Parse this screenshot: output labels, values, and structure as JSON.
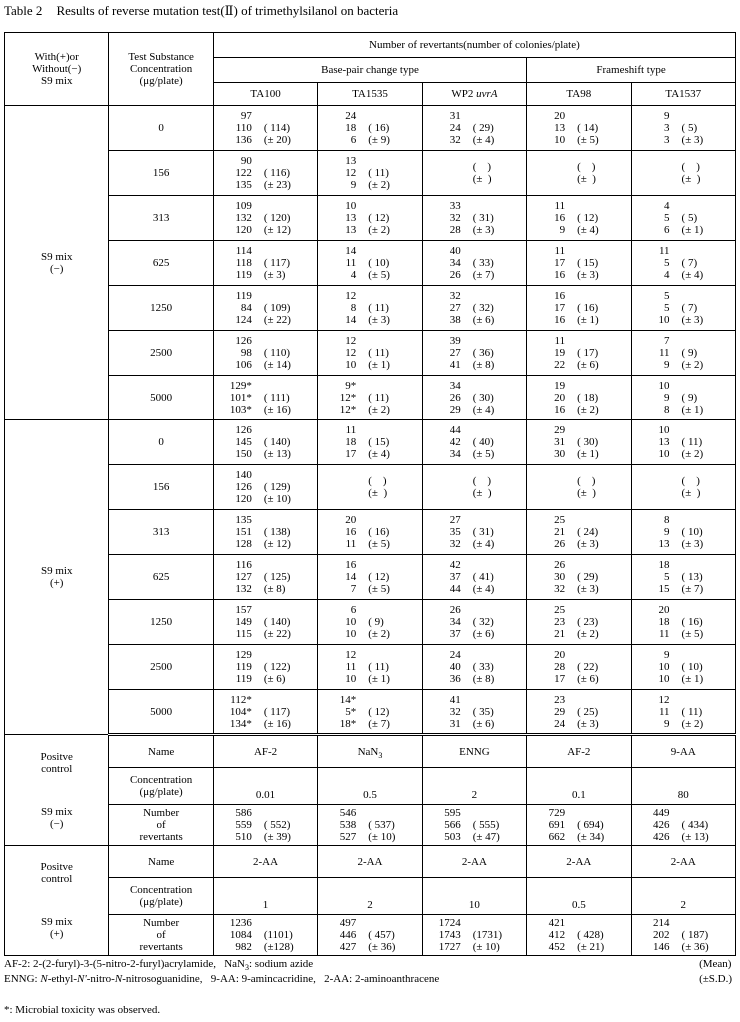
{
  "title": {
    "label": "Table 2",
    "text": "Results of reverse mutation test(Ⅱ) of trimethylsilanol on bacteria"
  },
  "header": {
    "col0": [
      "With(+)or",
      "Without(−)",
      "S9 mix"
    ],
    "col1": [
      "Test Substance",
      "Concentration",
      "(μg/plate)"
    ],
    "group": "Number of revertants(number of colonies/plate)",
    "types": [
      "Base-pair change type",
      "Frameshift type"
    ],
    "strains": [
      [
        {
          "t": "TA100"
        }
      ],
      [
        {
          "t": "TA1535"
        }
      ],
      [
        {
          "t": "WP2 "
        },
        {
          "t": "uvrA",
          "i": true
        }
      ],
      [
        {
          "t": "TA98"
        }
      ],
      [
        {
          "t": "TA1537"
        }
      ]
    ]
  },
  "blocks": [
    {
      "label": [
        "S9 mix",
        "(−)"
      ],
      "rows": [
        {
          "conc": "0",
          "cells": [
            {
              "counts": [
                "97",
                "110",
                "136"
              ],
              "mean": "( 114)",
              "sd": "(± 20)"
            },
            {
              "counts": [
                "24",
                "18",
                "6"
              ],
              "mean": "( 16)",
              "sd": "(± 9)"
            },
            {
              "counts": [
                "31",
                "24",
                "32"
              ],
              "mean": "( 29)",
              "sd": "(± 4)"
            },
            {
              "counts": [
                "20",
                "13",
                "10"
              ],
              "mean": "( 14)",
              "sd": "(± 5)"
            },
            {
              "counts": [
                "9",
                "3",
                "3"
              ],
              "mean": "( 5)",
              "sd": "(± 3)"
            }
          ]
        },
        {
          "conc": "156",
          "cells": [
            {
              "counts": [
                "90",
                "122",
                "135"
              ],
              "mean": "( 116)",
              "sd": "(± 23)"
            },
            {
              "counts": [
                "13",
                "12",
                "9"
              ],
              "mean": "( 11)",
              "sd": "(± 2)"
            },
            {
              "counts": [],
              "mean": "(    )",
              "sd": "(±  )"
            },
            {
              "counts": [],
              "mean": "(    )",
              "sd": "(±  )"
            },
            {
              "counts": [],
              "mean": "(    )",
              "sd": "(±  )"
            }
          ]
        },
        {
          "conc": "313",
          "cells": [
            {
              "counts": [
                "109",
                "132",
                "120"
              ],
              "mean": "( 120)",
              "sd": "(± 12)"
            },
            {
              "counts": [
                "10",
                "13",
                "13"
              ],
              "mean": "( 12)",
              "sd": "(± 2)"
            },
            {
              "counts": [
                "33",
                "32",
                "28"
              ],
              "mean": "( 31)",
              "sd": "(± 3)"
            },
            {
              "counts": [
                "11",
                "16",
                "9"
              ],
              "mean": "( 12)",
              "sd": "(± 4)"
            },
            {
              "counts": [
                "4",
                "5",
                "6"
              ],
              "mean": "( 5)",
              "sd": "(± 1)"
            }
          ]
        },
        {
          "conc": "625",
          "cells": [
            {
              "counts": [
                "114",
                "118",
                "119"
              ],
              "mean": "( 117)",
              "sd": "(± 3)"
            },
            {
              "counts": [
                "14",
                "11",
                "4"
              ],
              "mean": "( 10)",
              "sd": "(± 5)"
            },
            {
              "counts": [
                "40",
                "34",
                "26"
              ],
              "mean": "( 33)",
              "sd": "(± 7)"
            },
            {
              "counts": [
                "11",
                "17",
                "16"
              ],
              "mean": "( 15)",
              "sd": "(± 3)"
            },
            {
              "counts": [
                "11",
                "5",
                "4"
              ],
              "mean": "( 7)",
              "sd": "(± 4)"
            }
          ]
        },
        {
          "conc": "1250",
          "cells": [
            {
              "counts": [
                "119",
                "84",
                "124"
              ],
              "mean": "( 109)",
              "sd": "(± 22)"
            },
            {
              "counts": [
                "12",
                "8",
                "14"
              ],
              "mean": "( 11)",
              "sd": "(± 3)"
            },
            {
              "counts": [
                "32",
                "27",
                "38"
              ],
              "mean": "( 32)",
              "sd": "(± 6)"
            },
            {
              "counts": [
                "16",
                "17",
                "16"
              ],
              "mean": "( 16)",
              "sd": "(± 1)"
            },
            {
              "counts": [
                "5",
                "5",
                "10"
              ],
              "mean": "( 7)",
              "sd": "(± 3)"
            }
          ]
        },
        {
          "conc": "2500",
          "cells": [
            {
              "counts": [
                "126",
                "98",
                "106"
              ],
              "mean": "( 110)",
              "sd": "(± 14)"
            },
            {
              "counts": [
                "12",
                "12",
                "10"
              ],
              "mean": "( 11)",
              "sd": "(± 1)"
            },
            {
              "counts": [
                "39",
                "27",
                "41"
              ],
              "mean": "( 36)",
              "sd": "(± 8)"
            },
            {
              "counts": [
                "11",
                "19",
                "22"
              ],
              "mean": "( 17)",
              "sd": "(± 6)"
            },
            {
              "counts": [
                "7",
                "11",
                "9"
              ],
              "mean": "( 9)",
              "sd": "(± 2)"
            }
          ]
        },
        {
          "conc": "5000",
          "cells": [
            {
              "counts": [
                "129*",
                "101*",
                "103*"
              ],
              "mean": "( 111)",
              "sd": "(± 16)"
            },
            {
              "counts": [
                "9*",
                "12*",
                "12*"
              ],
              "mean": "( 11)",
              "sd": "(± 2)"
            },
            {
              "counts": [
                "34",
                "26",
                "29"
              ],
              "mean": "( 30)",
              "sd": "(± 4)"
            },
            {
              "counts": [
                "19",
                "20",
                "16"
              ],
              "mean": "( 18)",
              "sd": "(± 2)"
            },
            {
              "counts": [
                "10",
                "9",
                "8"
              ],
              "mean": "( 9)",
              "sd": "(± 1)"
            }
          ]
        }
      ]
    },
    {
      "label": [
        "S9 mix",
        "(+)"
      ],
      "rows": [
        {
          "conc": "0",
          "cells": [
            {
              "counts": [
                "126",
                "145",
                "150"
              ],
              "mean": "( 140)",
              "sd": "(± 13)"
            },
            {
              "counts": [
                "11",
                "18",
                "17"
              ],
              "mean": "( 15)",
              "sd": "(± 4)"
            },
            {
              "counts": [
                "44",
                "42",
                "34"
              ],
              "mean": "( 40)",
              "sd": "(± 5)"
            },
            {
              "counts": [
                "29",
                "31",
                "30"
              ],
              "mean": "( 30)",
              "sd": "(± 1)"
            },
            {
              "counts": [
                "10",
                "13",
                "10"
              ],
              "mean": "( 11)",
              "sd": "(± 2)"
            }
          ]
        },
        {
          "conc": "156",
          "cells": [
            {
              "counts": [
                "140",
                "126",
                "120"
              ],
              "mean": "( 129)",
              "sd": "(± 10)"
            },
            {
              "counts": [],
              "mean": "(    )",
              "sd": "(±  )"
            },
            {
              "counts": [],
              "mean": "(    )",
              "sd": "(±  )"
            },
            {
              "counts": [],
              "mean": "(    )",
              "sd": "(±  )"
            },
            {
              "counts": [],
              "mean": "(    )",
              "sd": "(±  )"
            }
          ]
        },
        {
          "conc": "313",
          "cells": [
            {
              "counts": [
                "135",
                "151",
                "128"
              ],
              "mean": "( 138)",
              "sd": "(± 12)"
            },
            {
              "counts": [
                "20",
                "16",
                "11"
              ],
              "mean": "( 16)",
              "sd": "(± 5)"
            },
            {
              "counts": [
                "27",
                "35",
                "32"
              ],
              "mean": "( 31)",
              "sd": "(± 4)"
            },
            {
              "counts": [
                "25",
                "21",
                "26"
              ],
              "mean": "( 24)",
              "sd": "(± 3)"
            },
            {
              "counts": [
                "8",
                "9",
                "13"
              ],
              "mean": "( 10)",
              "sd": "(± 3)"
            }
          ]
        },
        {
          "conc": "625",
          "cells": [
            {
              "counts": [
                "116",
                "127",
                "132"
              ],
              "mean": "( 125)",
              "sd": "(± 8)"
            },
            {
              "counts": [
                "16",
                "14",
                "7"
              ],
              "mean": "( 12)",
              "sd": "(± 5)"
            },
            {
              "counts": [
                "42",
                "37",
                "44"
              ],
              "mean": "( 41)",
              "sd": "(± 4)"
            },
            {
              "counts": [
                "26",
                "30",
                "32"
              ],
              "mean": "( 29)",
              "sd": "(± 3)"
            },
            {
              "counts": [
                "18",
                "5",
                "15"
              ],
              "mean": "( 13)",
              "sd": "(± 7)"
            }
          ]
        },
        {
          "conc": "1250",
          "cells": [
            {
              "counts": [
                "157",
                "149",
                "115"
              ],
              "mean": "( 140)",
              "sd": "(± 22)"
            },
            {
              "counts": [
                "6",
                "10",
                "10"
              ],
              "mean": "( 9)",
              "sd": "(± 2)"
            },
            {
              "counts": [
                "26",
                "34",
                "37"
              ],
              "mean": "( 32)",
              "sd": "(± 6)"
            },
            {
              "counts": [
                "25",
                "23",
                "21"
              ],
              "mean": "( 23)",
              "sd": "(± 2)"
            },
            {
              "counts": [
                "20",
                "18",
                "11"
              ],
              "mean": "( 16)",
              "sd": "(± 5)"
            }
          ]
        },
        {
          "conc": "2500",
          "cells": [
            {
              "counts": [
                "129",
                "119",
                "119"
              ],
              "mean": "( 122)",
              "sd": "(± 6)"
            },
            {
              "counts": [
                "12",
                "11",
                "10"
              ],
              "mean": "( 11)",
              "sd": "(± 1)"
            },
            {
              "counts": [
                "24",
                "40",
                "36"
              ],
              "mean": "( 33)",
              "sd": "(± 8)"
            },
            {
              "counts": [
                "20",
                "28",
                "17"
              ],
              "mean": "( 22)",
              "sd": "(± 6)"
            },
            {
              "counts": [
                "9",
                "10",
                "10"
              ],
              "mean": "( 10)",
              "sd": "(± 1)"
            }
          ]
        },
        {
          "conc": "5000",
          "cells": [
            {
              "counts": [
                "112*",
                "104*",
                "134*"
              ],
              "mean": "( 117)",
              "sd": "(± 16)"
            },
            {
              "counts": [
                "14*",
                "5*",
                "18*"
              ],
              "mean": "( 12)",
              "sd": "(± 7)"
            },
            {
              "counts": [
                "41",
                "32",
                "31"
              ],
              "mean": "( 35)",
              "sd": "(± 6)"
            },
            {
              "counts": [
                "23",
                "29",
                "24"
              ],
              "mean": "( 25)",
              "sd": "(± 3)"
            },
            {
              "counts": [
                "12",
                "11",
                "9"
              ],
              "mean": "( 11)",
              "sd": "(± 2)"
            }
          ]
        }
      ]
    }
  ],
  "positive": [
    {
      "label": [
        "Positve",
        "control"
      ],
      "s9": [
        "S9 mix",
        "(−)"
      ],
      "row_labels": {
        "name": "Name",
        "conc": [
          "Concentration",
          "(μg/plate)"
        ],
        "rev": [
          "Number",
          "of",
          "revertants"
        ]
      },
      "names": [
        [
          {
            "t": "AF-2"
          }
        ],
        [
          {
            "t": "NaN"
          },
          {
            "t": "3",
            "sub": true
          }
        ],
        [
          {
            "t": "ENNG"
          }
        ],
        [
          {
            "t": "AF-2"
          }
        ],
        [
          {
            "t": "9-AA"
          }
        ]
      ],
      "conc": [
        "0.01",
        "0.5",
        "2",
        "0.1",
        "80"
      ],
      "cells": [
        {
          "counts": [
            "586",
            "559",
            "510"
          ],
          "mean": "( 552)",
          "sd": "(± 39)"
        },
        {
          "counts": [
            "546",
            "538",
            "527"
          ],
          "mean": "( 537)",
          "sd": "(± 10)"
        },
        {
          "counts": [
            "595",
            "566",
            "503"
          ],
          "mean": "( 555)",
          "sd": "(± 47)"
        },
        {
          "counts": [
            "729",
            "691",
            "662"
          ],
          "mean": "( 694)",
          "sd": "(± 34)"
        },
        {
          "counts": [
            "449",
            "426",
            "426"
          ],
          "mean": "( 434)",
          "sd": "(± 13)"
        }
      ]
    },
    {
      "label": [
        "Positve",
        "control"
      ],
      "s9": [
        "S9 mix",
        "(+)"
      ],
      "row_labels": {
        "name": "Name",
        "conc": [
          "Concentration",
          "(μg/plate)"
        ],
        "rev": [
          "Number",
          "of",
          "revertants"
        ]
      },
      "names": [
        [
          {
            "t": "2-AA"
          }
        ],
        [
          {
            "t": "2-AA"
          }
        ],
        [
          {
            "t": "2-AA"
          }
        ],
        [
          {
            "t": "2-AA"
          }
        ],
        [
          {
            "t": "2-AA"
          }
        ]
      ],
      "conc": [
        "1",
        "2",
        "10",
        "0.5",
        "2"
      ],
      "cells": [
        {
          "counts": [
            "1236",
            "1084",
            "982"
          ],
          "mean": "(1101)",
          "sd": "(±128)"
        },
        {
          "counts": [
            "497",
            "446",
            "427"
          ],
          "mean": "( 457)",
          "sd": "(± 36)"
        },
        {
          "counts": [
            "1724",
            "1743",
            "1727"
          ],
          "mean": "(1731)",
          "sd": "(± 10)"
        },
        {
          "counts": [
            "421",
            "412",
            "452"
          ],
          "mean": "( 428)",
          "sd": "(± 21)"
        },
        {
          "counts": [
            "214",
            "202",
            "146"
          ],
          "mean": "( 187)",
          "sd": "(± 36)"
        }
      ]
    }
  ],
  "footnotes": {
    "lines": [
      [
        {
          "t": "AF-2: 2-(2-furyl)-3-(5-nitro-2-furyl)acrylamide,   NaN"
        },
        {
          "t": "3",
          "sub": true
        },
        {
          "t": ": sodium azide"
        }
      ],
      [
        {
          "t": "ENNG: "
        },
        {
          "t": "N",
          "i": true
        },
        {
          "t": "-ethyl-"
        },
        {
          "t": "N'",
          "i": true
        },
        {
          "t": "-nitro-"
        },
        {
          "t": "N",
          "i": true
        },
        {
          "t": "-nitrosoguanidine,   9-AA: 9-amincacridine,   2-AA: 2-aminoanthracene"
        }
      ]
    ],
    "right": [
      "(Mean)",
      "(±S.D.)"
    ],
    "note": "*: Microbial toxicity was observed."
  }
}
